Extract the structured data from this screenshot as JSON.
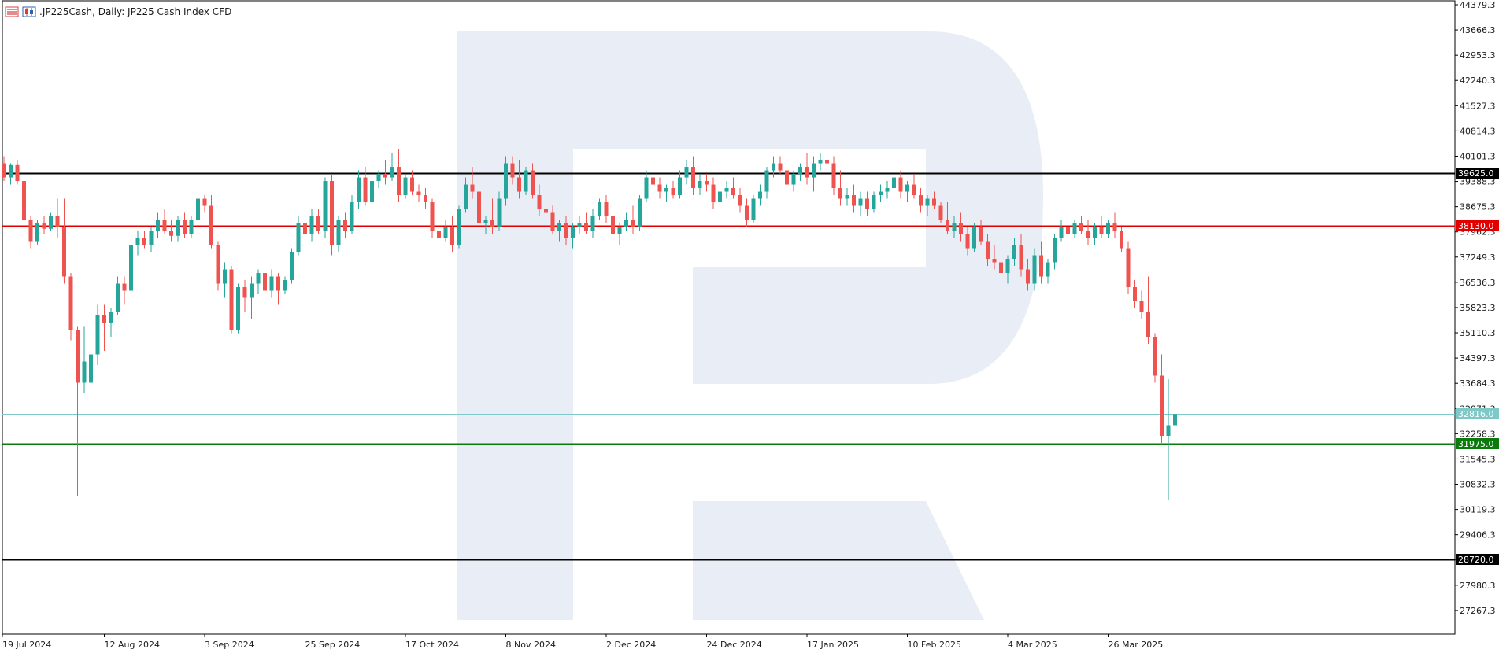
{
  "header": {
    "title": ".JP225Cash, Daily:  JP225 Cash Index CFD",
    "icons": [
      "chart-list-icon",
      "candle-chart-icon"
    ]
  },
  "colors": {
    "bull": "#26a69a",
    "bear": "#ef5350",
    "axis": "#000000",
    "watermark": "#e9edf5",
    "resistance_black": "#000000",
    "resistance_red": "#e00000",
    "current_price": "#7fc8c8",
    "support_green": "#0a7a0a"
  },
  "chart_data": {
    "type": "candlestick",
    "title": ".JP225Cash, Daily:  JP225 Cash Index CFD",
    "y_axis": {
      "range": [
        26800,
        44379.3
      ],
      "tick_labels": [
        "44379.3",
        "43666.3",
        "42953.3",
        "42240.3",
        "41527.3",
        "40814.3",
        "40101.3",
        "39388.3",
        "38675.3",
        "37962.3",
        "37249.3",
        "36536.3",
        "35823.3",
        "35110.3",
        "34397.3",
        "33684.3",
        "32971.3",
        "32258.3",
        "31545.3",
        "30832.3",
        "30119.3",
        "29406.3",
        "28693.3",
        "27980.3",
        "27267.3"
      ],
      "position": "right"
    },
    "x_axis": {
      "tick_labels": [
        {
          "label": "19 Jul 2024",
          "index": 0
        },
        {
          "label": "12 Aug 2024",
          "index": 15
        },
        {
          "label": "3 Sep 2024",
          "index": 30
        },
        {
          "label": "25 Sep 2024",
          "index": 45
        },
        {
          "label": "17 Oct 2024",
          "index": 60
        },
        {
          "label": "8 Nov 2024",
          "index": 75
        },
        {
          "label": "2 Dec 2024",
          "index": 90
        },
        {
          "label": "24 Dec 2024",
          "index": 105
        },
        {
          "label": "17 Jan 2025",
          "index": 120
        },
        {
          "label": "10 Feb 2025",
          "index": 135
        },
        {
          "label": "4 Mar 2025",
          "index": 150
        },
        {
          "label": "26 Mar 2025",
          "index": 165
        }
      ]
    },
    "levels": [
      {
        "name": "resistance-upper",
        "value": 39625.0,
        "label": "39625.0",
        "color": "#000000"
      },
      {
        "name": "resistance-mid",
        "value": 38130.0,
        "label": "38130.0",
        "color": "#e00000"
      },
      {
        "name": "current-price",
        "value": 32816.0,
        "label": "32816.0",
        "color": "#7fc8c8"
      },
      {
        "name": "support-mid",
        "value": 31975.0,
        "label": "31975.0",
        "color": "#0a7a0a"
      },
      {
        "name": "support-lower",
        "value": 28720.0,
        "label": "28720.0",
        "color": "#000000"
      }
    ],
    "candles": [
      {
        "o": 39900,
        "h": 40100,
        "l": 39400,
        "c": 39500
      },
      {
        "o": 39500,
        "h": 39900,
        "l": 39300,
        "c": 39850
      },
      {
        "o": 39850,
        "h": 40000,
        "l": 39300,
        "c": 39400
      },
      {
        "o": 39400,
        "h": 39500,
        "l": 38200,
        "c": 38300
      },
      {
        "o": 38300,
        "h": 38400,
        "l": 37500,
        "c": 37700
      },
      {
        "o": 37700,
        "h": 38300,
        "l": 37600,
        "c": 38200
      },
      {
        "o": 38200,
        "h": 38400,
        "l": 37900,
        "c": 38050
      },
      {
        "o": 38050,
        "h": 38500,
        "l": 38000,
        "c": 38400
      },
      {
        "o": 38400,
        "h": 38900,
        "l": 37800,
        "c": 38100
      },
      {
        "o": 38100,
        "h": 38900,
        "l": 36500,
        "c": 36700
      },
      {
        "o": 36700,
        "h": 36800,
        "l": 34900,
        "c": 35200
      },
      {
        "o": 35200,
        "h": 35300,
        "l": 30500,
        "c": 33700
      },
      {
        "o": 33700,
        "h": 35300,
        "l": 33400,
        "c": 34300
      },
      {
        "o": 33700,
        "h": 35800,
        "l": 33600,
        "c": 34500
      },
      {
        "o": 34500,
        "h": 35900,
        "l": 34200,
        "c": 35600
      },
      {
        "o": 35600,
        "h": 35900,
        "l": 34600,
        "c": 35400
      },
      {
        "o": 35400,
        "h": 35800,
        "l": 35000,
        "c": 35700
      },
      {
        "o": 35700,
        "h": 36700,
        "l": 35600,
        "c": 36500
      },
      {
        "o": 36500,
        "h": 36700,
        "l": 35900,
        "c": 36300
      },
      {
        "o": 36300,
        "h": 37800,
        "l": 36200,
        "c": 37600
      },
      {
        "o": 37600,
        "h": 38000,
        "l": 37300,
        "c": 37800
      },
      {
        "o": 37800,
        "h": 38000,
        "l": 37500,
        "c": 37600
      },
      {
        "o": 37600,
        "h": 38100,
        "l": 37400,
        "c": 38000
      },
      {
        "o": 38000,
        "h": 38500,
        "l": 37800,
        "c": 38300
      },
      {
        "o": 38300,
        "h": 38600,
        "l": 37900,
        "c": 38000
      },
      {
        "o": 38000,
        "h": 38300,
        "l": 37700,
        "c": 37850
      },
      {
        "o": 37850,
        "h": 38400,
        "l": 37700,
        "c": 38300
      },
      {
        "o": 38300,
        "h": 38500,
        "l": 37800,
        "c": 37900
      },
      {
        "o": 37900,
        "h": 38400,
        "l": 37800,
        "c": 38300
      },
      {
        "o": 38300,
        "h": 39100,
        "l": 38100,
        "c": 38900
      },
      {
        "o": 38900,
        "h": 39000,
        "l": 38500,
        "c": 38700
      },
      {
        "o": 38700,
        "h": 39000,
        "l": 37500,
        "c": 37600
      },
      {
        "o": 37600,
        "h": 37700,
        "l": 36300,
        "c": 36500
      },
      {
        "o": 36500,
        "h": 37100,
        "l": 36100,
        "c": 36900
      },
      {
        "o": 36900,
        "h": 37000,
        "l": 35100,
        "c": 35200
      },
      {
        "o": 35200,
        "h": 36500,
        "l": 35100,
        "c": 36400
      },
      {
        "o": 36400,
        "h": 36600,
        "l": 35700,
        "c": 36100
      },
      {
        "o": 36100,
        "h": 36700,
        "l": 35500,
        "c": 36500
      },
      {
        "o": 36500,
        "h": 36900,
        "l": 36200,
        "c": 36800
      },
      {
        "o": 36800,
        "h": 37000,
        "l": 36100,
        "c": 36300
      },
      {
        "o": 36300,
        "h": 36900,
        "l": 36100,
        "c": 36700
      },
      {
        "o": 36700,
        "h": 36800,
        "l": 35900,
        "c": 36300
      },
      {
        "o": 36300,
        "h": 36700,
        "l": 36200,
        "c": 36600
      },
      {
        "o": 36600,
        "h": 37500,
        "l": 36500,
        "c": 37400
      },
      {
        "o": 37400,
        "h": 38400,
        "l": 37300,
        "c": 38200
      },
      {
        "o": 38200,
        "h": 38500,
        "l": 37800,
        "c": 37900
      },
      {
        "o": 37900,
        "h": 38600,
        "l": 37700,
        "c": 38400
      },
      {
        "o": 38400,
        "h": 38600,
        "l": 37900,
        "c": 38000
      },
      {
        "o": 38000,
        "h": 39500,
        "l": 37800,
        "c": 39400
      },
      {
        "o": 39400,
        "h": 39600,
        "l": 37300,
        "c": 37600
      },
      {
        "o": 37600,
        "h": 38400,
        "l": 37400,
        "c": 38300
      },
      {
        "o": 38300,
        "h": 38500,
        "l": 37800,
        "c": 38000
      },
      {
        "o": 38000,
        "h": 39000,
        "l": 37900,
        "c": 38800
      },
      {
        "o": 38800,
        "h": 39700,
        "l": 38600,
        "c": 39500
      },
      {
        "o": 39500,
        "h": 39800,
        "l": 38700,
        "c": 38800
      },
      {
        "o": 38800,
        "h": 39600,
        "l": 38700,
        "c": 39400
      },
      {
        "o": 39400,
        "h": 39700,
        "l": 39200,
        "c": 39600
      },
      {
        "o": 39600,
        "h": 40000,
        "l": 39300,
        "c": 39500
      },
      {
        "o": 39500,
        "h": 40200,
        "l": 39400,
        "c": 39800
      },
      {
        "o": 39800,
        "h": 40300,
        "l": 38800,
        "c": 39000
      },
      {
        "o": 39000,
        "h": 39600,
        "l": 38900,
        "c": 39500
      },
      {
        "o": 39500,
        "h": 39700,
        "l": 39000,
        "c": 39100
      },
      {
        "o": 39100,
        "h": 39300,
        "l": 38800,
        "c": 39000
      },
      {
        "o": 39000,
        "h": 39200,
        "l": 38600,
        "c": 38800
      },
      {
        "o": 38800,
        "h": 38900,
        "l": 37800,
        "c": 38000
      },
      {
        "o": 38000,
        "h": 38200,
        "l": 37600,
        "c": 37800
      },
      {
        "o": 37800,
        "h": 38300,
        "l": 37700,
        "c": 38100
      },
      {
        "o": 38100,
        "h": 38400,
        "l": 37400,
        "c": 37600
      },
      {
        "o": 37600,
        "h": 38700,
        "l": 37500,
        "c": 38600
      },
      {
        "o": 38600,
        "h": 39500,
        "l": 38500,
        "c": 39300
      },
      {
        "o": 39300,
        "h": 39800,
        "l": 38900,
        "c": 39100
      },
      {
        "o": 39100,
        "h": 39200,
        "l": 38000,
        "c": 38200
      },
      {
        "o": 38200,
        "h": 38400,
        "l": 37900,
        "c": 38300
      },
      {
        "o": 38300,
        "h": 38900,
        "l": 37900,
        "c": 38100
      },
      {
        "o": 38100,
        "h": 39100,
        "l": 38000,
        "c": 38900
      },
      {
        "o": 38900,
        "h": 40100,
        "l": 38700,
        "c": 39900
      },
      {
        "o": 39900,
        "h": 40100,
        "l": 39300,
        "c": 39500
      },
      {
        "o": 39500,
        "h": 40000,
        "l": 38900,
        "c": 39100
      },
      {
        "o": 39100,
        "h": 39800,
        "l": 39000,
        "c": 39700
      },
      {
        "o": 39700,
        "h": 39900,
        "l": 38900,
        "c": 39000
      },
      {
        "o": 39000,
        "h": 39300,
        "l": 38400,
        "c": 38600
      },
      {
        "o": 38600,
        "h": 38800,
        "l": 38100,
        "c": 38500
      },
      {
        "o": 38500,
        "h": 38700,
        "l": 37900,
        "c": 38000
      },
      {
        "o": 38000,
        "h": 38300,
        "l": 37700,
        "c": 38200
      },
      {
        "o": 38200,
        "h": 38400,
        "l": 37600,
        "c": 37800
      },
      {
        "o": 37800,
        "h": 38200,
        "l": 37500,
        "c": 38100
      },
      {
        "o": 38100,
        "h": 38400,
        "l": 37900,
        "c": 38200
      },
      {
        "o": 38200,
        "h": 38500,
        "l": 37900,
        "c": 38000
      },
      {
        "o": 38000,
        "h": 38600,
        "l": 37800,
        "c": 38400
      },
      {
        "o": 38400,
        "h": 38900,
        "l": 38300,
        "c": 38800
      },
      {
        "o": 38800,
        "h": 39000,
        "l": 38200,
        "c": 38400
      },
      {
        "o": 38400,
        "h": 38500,
        "l": 37700,
        "c": 37900
      },
      {
        "o": 37900,
        "h": 38200,
        "l": 37600,
        "c": 38100
      },
      {
        "o": 38100,
        "h": 38500,
        "l": 38000,
        "c": 38300
      },
      {
        "o": 38300,
        "h": 38700,
        "l": 37900,
        "c": 38100
      },
      {
        "o": 38100,
        "h": 39000,
        "l": 38000,
        "c": 38900
      },
      {
        "o": 38900,
        "h": 39700,
        "l": 38800,
        "c": 39500
      },
      {
        "o": 39500,
        "h": 39700,
        "l": 39100,
        "c": 39300
      },
      {
        "o": 39300,
        "h": 39500,
        "l": 38900,
        "c": 39100
      },
      {
        "o": 39100,
        "h": 39300,
        "l": 38800,
        "c": 39200
      },
      {
        "o": 39200,
        "h": 39400,
        "l": 38900,
        "c": 39000
      },
      {
        "o": 39000,
        "h": 39700,
        "l": 38900,
        "c": 39500
      },
      {
        "o": 39500,
        "h": 40000,
        "l": 39300,
        "c": 39800
      },
      {
        "o": 39800,
        "h": 40100,
        "l": 39000,
        "c": 39200
      },
      {
        "o": 39200,
        "h": 39600,
        "l": 39000,
        "c": 39400
      },
      {
        "o": 39400,
        "h": 39600,
        "l": 39100,
        "c": 39300
      },
      {
        "o": 39300,
        "h": 39500,
        "l": 38600,
        "c": 38800
      },
      {
        "o": 38800,
        "h": 39200,
        "l": 38700,
        "c": 39100
      },
      {
        "o": 39100,
        "h": 39400,
        "l": 38900,
        "c": 39200
      },
      {
        "o": 39200,
        "h": 39500,
        "l": 38900,
        "c": 39000
      },
      {
        "o": 39000,
        "h": 39200,
        "l": 38500,
        "c": 38700
      },
      {
        "o": 38700,
        "h": 38900,
        "l": 38100,
        "c": 38300
      },
      {
        "o": 38300,
        "h": 39000,
        "l": 38200,
        "c": 38900
      },
      {
        "o": 38900,
        "h": 39300,
        "l": 38700,
        "c": 39100
      },
      {
        "o": 39100,
        "h": 39800,
        "l": 38900,
        "c": 39700
      },
      {
        "o": 39700,
        "h": 40100,
        "l": 39500,
        "c": 39900
      },
      {
        "o": 39900,
        "h": 40100,
        "l": 39600,
        "c": 39700
      },
      {
        "o": 39700,
        "h": 39900,
        "l": 39100,
        "c": 39300
      },
      {
        "o": 39300,
        "h": 39700,
        "l": 39100,
        "c": 39600
      },
      {
        "o": 39600,
        "h": 39900,
        "l": 39400,
        "c": 39800
      },
      {
        "o": 39800,
        "h": 40200,
        "l": 39300,
        "c": 39500
      },
      {
        "o": 39500,
        "h": 40100,
        "l": 39100,
        "c": 39900
      },
      {
        "o": 39900,
        "h": 40200,
        "l": 39700,
        "c": 40000
      },
      {
        "o": 40000,
        "h": 40200,
        "l": 39700,
        "c": 39900
      },
      {
        "o": 39900,
        "h": 40100,
        "l": 39000,
        "c": 39200
      },
      {
        "o": 39200,
        "h": 39700,
        "l": 38700,
        "c": 38900
      },
      {
        "o": 38900,
        "h": 39200,
        "l": 38700,
        "c": 39000
      },
      {
        "o": 39000,
        "h": 39300,
        "l": 38500,
        "c": 38700
      },
      {
        "o": 38700,
        "h": 39100,
        "l": 38400,
        "c": 38900
      },
      {
        "o": 38900,
        "h": 39100,
        "l": 38400,
        "c": 38600
      },
      {
        "o": 38600,
        "h": 39100,
        "l": 38500,
        "c": 39000
      },
      {
        "o": 39000,
        "h": 39300,
        "l": 38800,
        "c": 39100
      },
      {
        "o": 39100,
        "h": 39400,
        "l": 38900,
        "c": 39200
      },
      {
        "o": 39200,
        "h": 39700,
        "l": 39000,
        "c": 39500
      },
      {
        "o": 39500,
        "h": 39700,
        "l": 38900,
        "c": 39100
      },
      {
        "o": 39100,
        "h": 39400,
        "l": 38800,
        "c": 39300
      },
      {
        "o": 39300,
        "h": 39600,
        "l": 38900,
        "c": 39000
      },
      {
        "o": 39000,
        "h": 39200,
        "l": 38500,
        "c": 38700
      },
      {
        "o": 38700,
        "h": 39000,
        "l": 38400,
        "c": 38900
      },
      {
        "o": 38900,
        "h": 39100,
        "l": 38600,
        "c": 38700
      },
      {
        "o": 38700,
        "h": 38800,
        "l": 38200,
        "c": 38300
      },
      {
        "o": 38300,
        "h": 38800,
        "l": 37900,
        "c": 38000
      },
      {
        "o": 38000,
        "h": 38400,
        "l": 37800,
        "c": 38200
      },
      {
        "o": 38200,
        "h": 38500,
        "l": 37700,
        "c": 37900
      },
      {
        "o": 37900,
        "h": 38100,
        "l": 37300,
        "c": 37500
      },
      {
        "o": 37500,
        "h": 38200,
        "l": 37400,
        "c": 38100
      },
      {
        "o": 38100,
        "h": 38300,
        "l": 37600,
        "c": 37700
      },
      {
        "o": 37700,
        "h": 37900,
        "l": 37000,
        "c": 37200
      },
      {
        "o": 37200,
        "h": 37600,
        "l": 36900,
        "c": 37100
      },
      {
        "o": 37100,
        "h": 37400,
        "l": 36500,
        "c": 36800
      },
      {
        "o": 36800,
        "h": 37300,
        "l": 36500,
        "c": 37200
      },
      {
        "o": 37200,
        "h": 37800,
        "l": 37000,
        "c": 37600
      },
      {
        "o": 37600,
        "h": 37900,
        "l": 36700,
        "c": 36900
      },
      {
        "o": 36900,
        "h": 37200,
        "l": 36300,
        "c": 36500
      },
      {
        "o": 36500,
        "h": 37500,
        "l": 36300,
        "c": 37300
      },
      {
        "o": 37300,
        "h": 37700,
        "l": 36500,
        "c": 36700
      },
      {
        "o": 36700,
        "h": 37200,
        "l": 36500,
        "c": 37100
      },
      {
        "o": 37100,
        "h": 37900,
        "l": 36900,
        "c": 37800
      },
      {
        "o": 37800,
        "h": 38300,
        "l": 37700,
        "c": 38100
      },
      {
        "o": 38100,
        "h": 38400,
        "l": 37800,
        "c": 37900
      },
      {
        "o": 37900,
        "h": 38300,
        "l": 37800,
        "c": 38200
      },
      {
        "o": 38200,
        "h": 38400,
        "l": 37900,
        "c": 38000
      },
      {
        "o": 38000,
        "h": 38300,
        "l": 37600,
        "c": 37800
      },
      {
        "o": 37800,
        "h": 38200,
        "l": 37600,
        "c": 38100
      },
      {
        "o": 38100,
        "h": 38400,
        "l": 37800,
        "c": 37900
      },
      {
        "o": 37900,
        "h": 38300,
        "l": 37800,
        "c": 38200
      },
      {
        "o": 38200,
        "h": 38500,
        "l": 37800,
        "c": 38000
      },
      {
        "o": 38000,
        "h": 38100,
        "l": 37400,
        "c": 37500
      },
      {
        "o": 37500,
        "h": 37700,
        "l": 36200,
        "c": 36400
      },
      {
        "o": 36400,
        "h": 36600,
        "l": 35800,
        "c": 36000
      },
      {
        "o": 36000,
        "h": 36300,
        "l": 35500,
        "c": 35700
      },
      {
        "o": 35700,
        "h": 36700,
        "l": 34800,
        "c": 35000
      },
      {
        "o": 35000,
        "h": 35100,
        "l": 33700,
        "c": 33900
      },
      {
        "o": 33900,
        "h": 34500,
        "l": 32000,
        "c": 32200
      },
      {
        "o": 32200,
        "h": 33800,
        "l": 30400,
        "c": 32500
      },
      {
        "o": 32500,
        "h": 33200,
        "l": 32200,
        "c": 32816
      }
    ]
  }
}
